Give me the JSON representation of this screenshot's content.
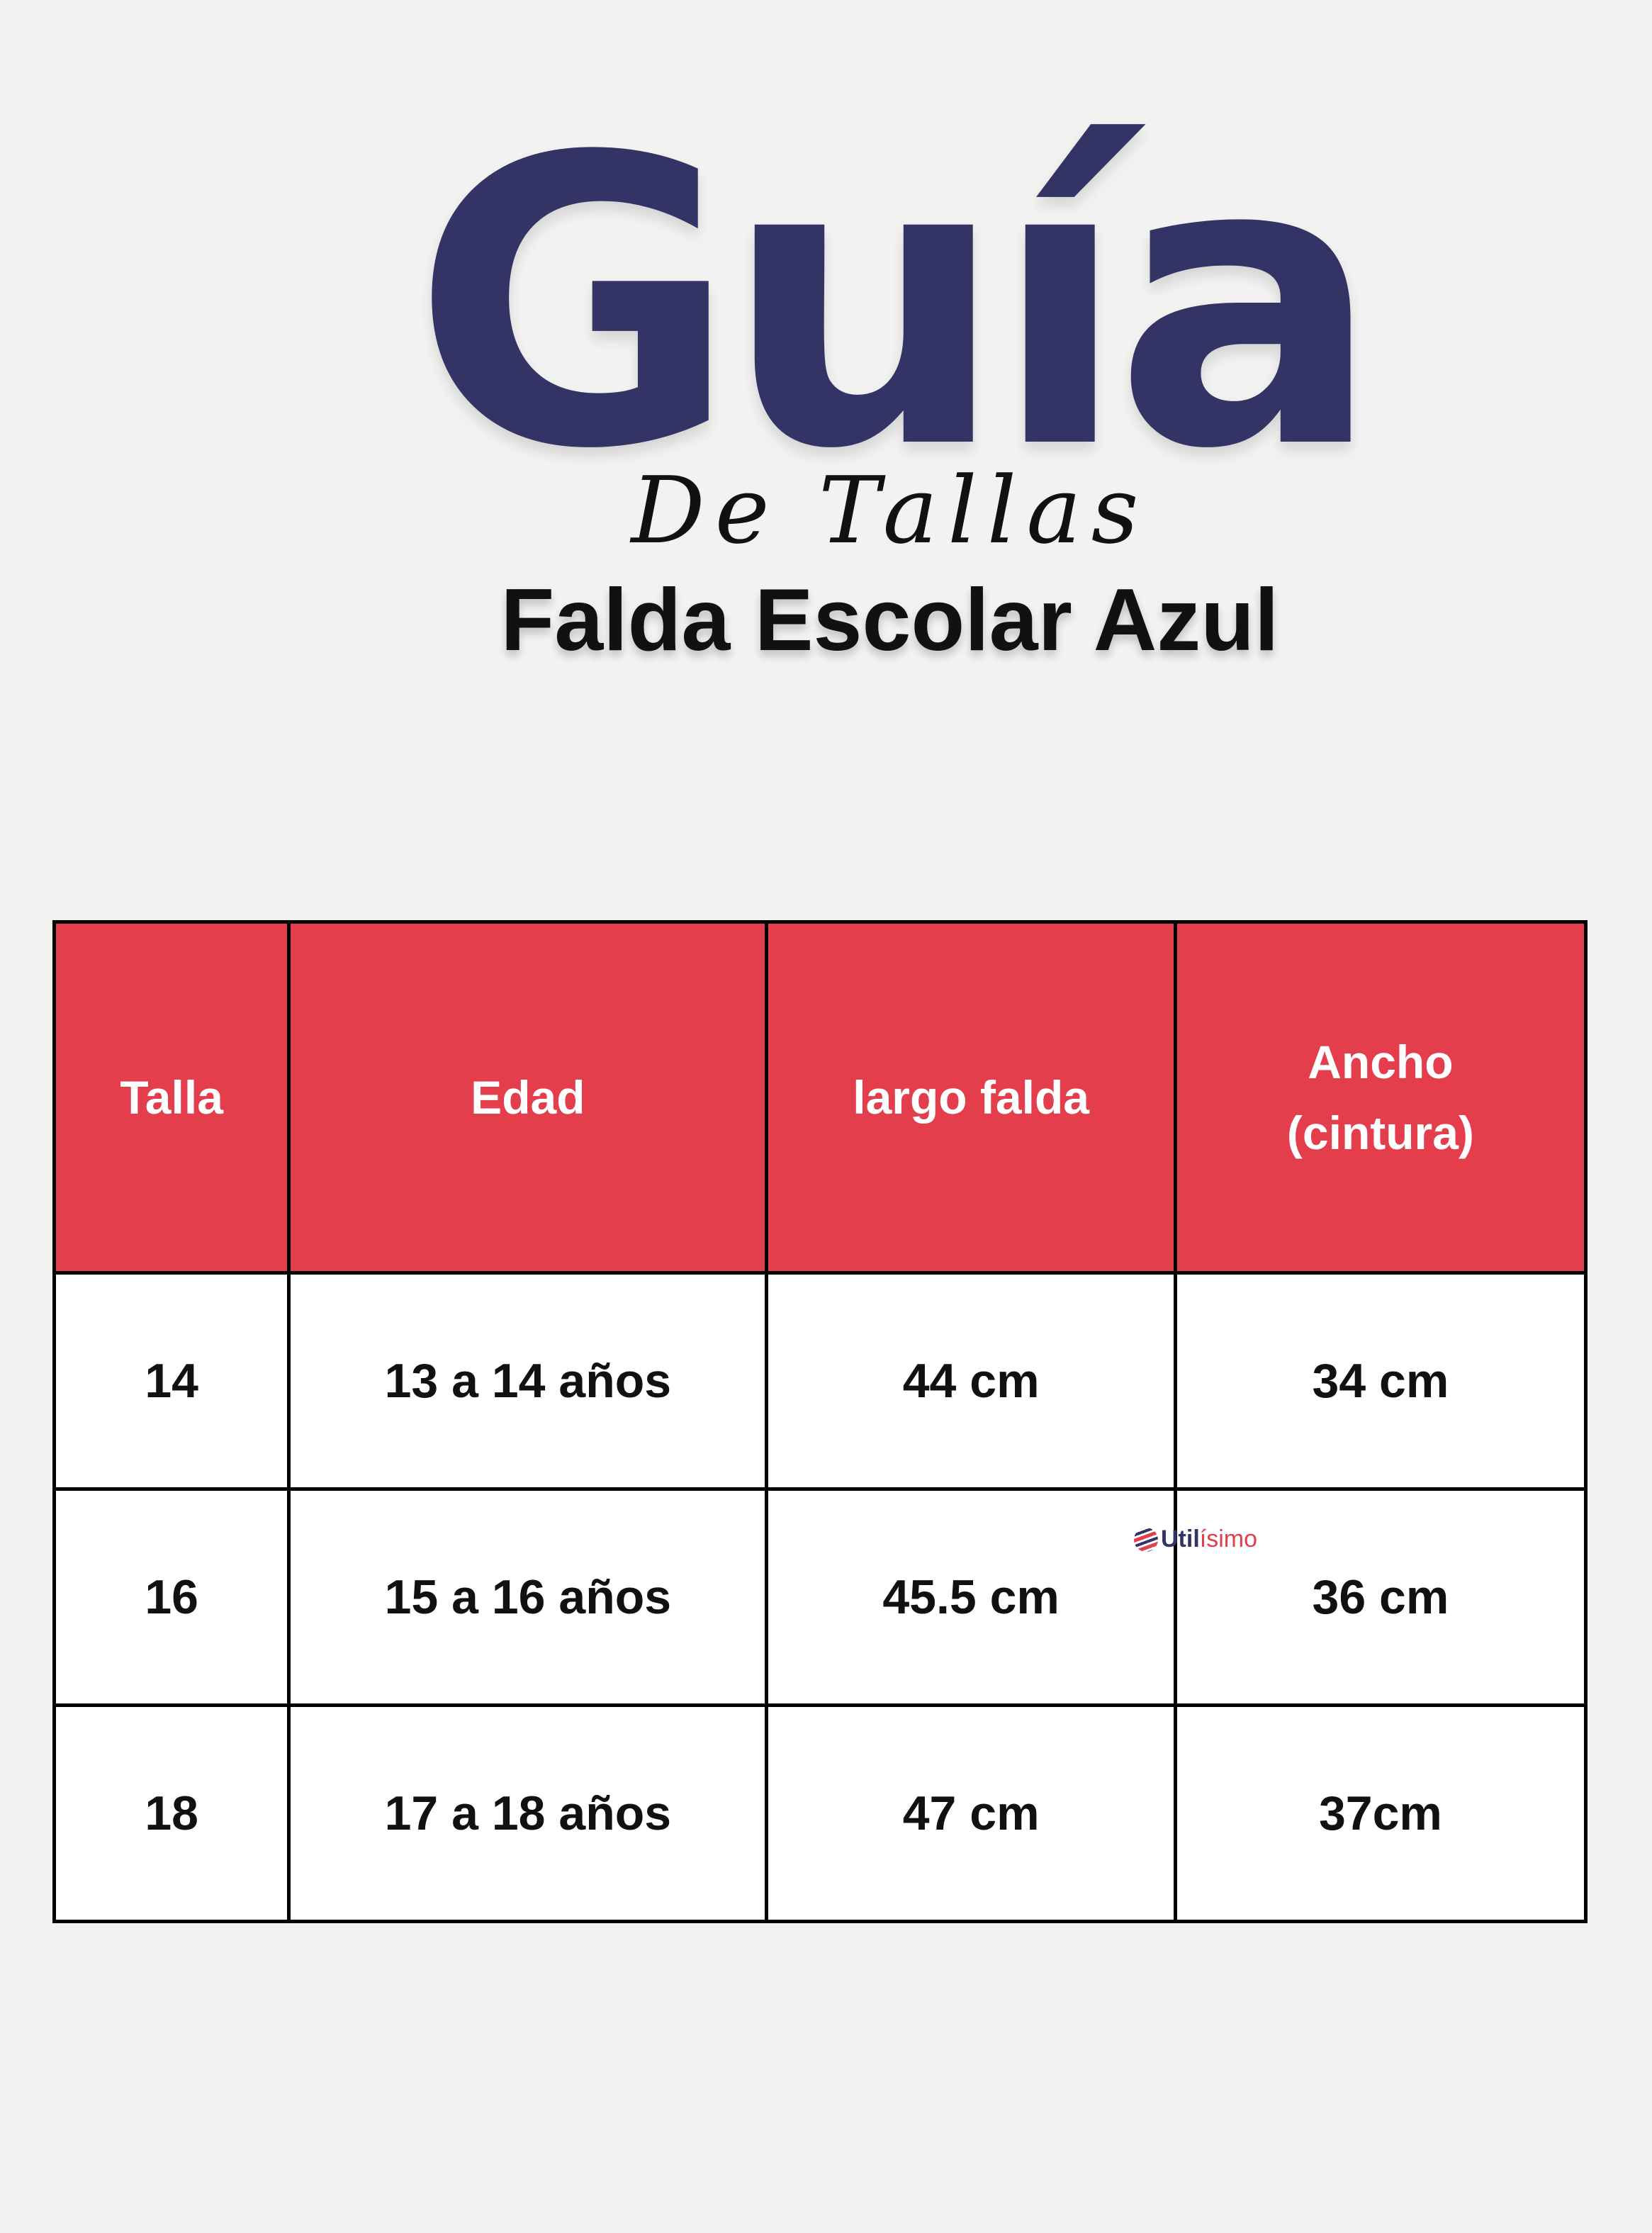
{
  "title": "Guía",
  "subtitle": "De Tallas",
  "product": "Falda Escolar Azul",
  "colors": {
    "title": "#333366",
    "header_bg": "#E43D4B",
    "background": "#F2F2F0"
  },
  "table": {
    "headers": [
      "Talla",
      "Edad",
      "largo falda",
      "Ancho (cintura)"
    ],
    "rows": [
      [
        "14",
        "13 a 14 años",
        "44 cm",
        "34 cm"
      ],
      [
        "16",
        "15 a 16 años",
        "45.5 cm",
        "36 cm"
      ],
      [
        "18",
        "17 a 18 años",
        "47 cm",
        "37cm"
      ]
    ]
  },
  "watermark": {
    "part1": "Util",
    "part2": "ísimo"
  }
}
